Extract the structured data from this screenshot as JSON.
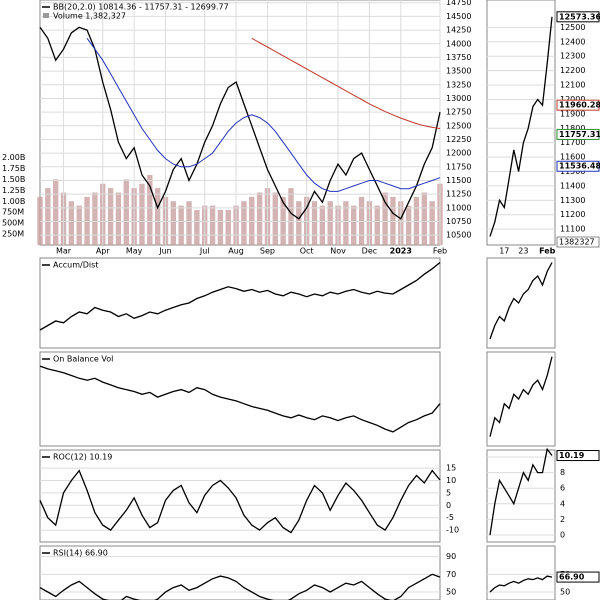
{
  "chart_data": [
    {
      "type": "line",
      "title": "BB(20,2.0) 10814.36 - 11757.31 - 12699.77",
      "volume_title": "Volume 1,382,327",
      "grid": true,
      "x_labels": [
        {
          "value": 3,
          "label": "Mar"
        },
        {
          "value": 8,
          "label": "Apr"
        },
        {
          "value": 12,
          "label": "May"
        },
        {
          "value": 16,
          "label": "Jun"
        },
        {
          "value": 21,
          "label": "Jul"
        },
        {
          "value": 25,
          "label": "Aug"
        },
        {
          "value": 29,
          "label": "Sep"
        },
        {
          "value": 34,
          "label": "Oct"
        },
        {
          "value": 38,
          "label": "Nov"
        },
        {
          "value": 42,
          "label": "Dec"
        },
        {
          "value": 46,
          "label": "2023"
        },
        {
          "value": 51,
          "label": "Feb"
        }
      ],
      "ylim": [
        10320,
        14800
      ],
      "yticks": [
        10500,
        10750,
        11000,
        11250,
        11500,
        11750,
        12000,
        12250,
        12500,
        12750,
        13000,
        13250,
        13500,
        13750,
        14000,
        14250,
        14500,
        14750
      ],
      "series": [
        {
          "color": "#000000",
          "values": [
            14300,
            14100,
            13700,
            13900,
            14200,
            14300,
            14250,
            13900,
            13300,
            12800,
            12200,
            11900,
            12100,
            11600,
            11400,
            11000,
            11300,
            11700,
            11900,
            11500,
            11800,
            12200,
            12500,
            12900,
            13200,
            13300,
            12900,
            12500,
            12100,
            11700,
            11400,
            11100,
            10900,
            10800,
            11000,
            11300,
            11100,
            11500,
            11800,
            11600,
            11900,
            12000,
            11700,
            11400,
            11100,
            10900,
            10800,
            11100,
            11400,
            11800,
            12100,
            12750
          ]
        },
        {
          "color": "#2233bb",
          "values": [
            null,
            null,
            null,
            null,
            null,
            null,
            14100,
            13900,
            13700,
            13450,
            13200,
            12950,
            12700,
            12450,
            12250,
            12050,
            11900,
            11800,
            11750,
            11750,
            11800,
            11900,
            12000,
            12200,
            12400,
            12550,
            12650,
            12700,
            12650,
            12550,
            12400,
            12200,
            12000,
            11800,
            11600,
            11450,
            11350,
            11300,
            11300,
            11350,
            11400,
            11450,
            11500,
            11500,
            11450,
            11400,
            11350,
            11350,
            11400,
            11450,
            11500,
            11550
          ]
        },
        {
          "color": "#c0392b",
          "values": [
            null,
            null,
            null,
            null,
            null,
            null,
            null,
            null,
            null,
            null,
            null,
            null,
            null,
            null,
            null,
            null,
            null,
            null,
            null,
            null,
            null,
            null,
            null,
            null,
            null,
            null,
            null,
            14100,
            14020,
            13940,
            13860,
            13780,
            13700,
            13620,
            13540,
            13460,
            13380,
            13300,
            13220,
            13140,
            13060,
            12980,
            12900,
            12830,
            12760,
            12700,
            12640,
            12590,
            12540,
            12500,
            12470,
            12450
          ]
        }
      ],
      "volume": {
        "color": "#c8a0a0",
        "values": [
          1100000000.0,
          1300000000.0,
          1500000000.0,
          1200000000.0,
          1000000000.0,
          900000000.0,
          1100000000.0,
          1200000000.0,
          1400000000.0,
          1300000000.0,
          1200000000.0,
          1500000000.0,
          1300000000.0,
          1400000000.0,
          1600000000.0,
          1300000000.0,
          1100000000.0,
          1000000000.0,
          900000000.0,
          1000000000.0,
          800000000.0,
          900000000.0,
          900000000.0,
          800000000.0,
          800000000.0,
          900000000.0,
          1000000000.0,
          1100000000.0,
          1200000000.0,
          1300000000.0,
          1200000000.0,
          1100000000.0,
          1300000000.0,
          1000000000.0,
          1100000000.0,
          1000000000.0,
          900000000.0,
          1000000000.0,
          900000000.0,
          1000000000.0,
          900000000.0,
          1100000000.0,
          1000000000.0,
          900000000.0,
          1200000000.0,
          1100000000.0,
          1000000000.0,
          900000000.0,
          1100000000.0,
          1200000000.0,
          1000000000.0,
          1400000000.0
        ],
        "ylim": [
          0,
          5600000000
        ],
        "yticks": [
          {
            "value": 250000000,
            "label": "250M"
          },
          {
            "value": 500000000,
            "label": "500M"
          },
          {
            "value": 750000000,
            "label": "750M"
          },
          {
            "value": 1000000000,
            "label": "1.00B"
          },
          {
            "value": 1250000000,
            "label": "1.25B"
          },
          {
            "value": 1500000000,
            "label": "1.50B"
          },
          {
            "value": 1750000000,
            "label": "1.75B"
          },
          {
            "value": 2000000000,
            "label": "2.00B"
          }
        ]
      },
      "zoom": {
        "x_labels": [
          {
            "value": 3,
            "label": "17"
          },
          {
            "value": 7,
            "label": "23"
          },
          {
            "value": 12,
            "label": "Feb"
          }
        ],
        "ylim": [
          10990,
          12690
        ],
        "yticks": [
          11100,
          11200,
          11300,
          11400,
          11500,
          11600,
          11700,
          11800,
          11900,
          12000,
          12100,
          12200,
          12300,
          12400,
          12500
        ],
        "series": [
          {
            "color": "#000000",
            "values": [
              11050,
              11150,
              11300,
              11250,
              11450,
              11650,
              11500,
              11700,
              11800,
              11950,
              12000,
              11960.28,
              12250,
              12573.36
            ]
          }
        ],
        "tags": [
          {
            "value": 12573.36,
            "color": "#000000"
          },
          {
            "value": 11960.28,
            "color": "#c0392b"
          },
          {
            "value": 11757.31,
            "color": "#2e8b2e"
          },
          {
            "value": 11536.48,
            "color": "#2233bb"
          }
        ],
        "volume_tag": 1382327
      }
    },
    {
      "type": "line",
      "title": "Accum/Dist",
      "grid": true,
      "ylim": [
        0,
        100
      ],
      "yticks": [],
      "series": [
        {
          "color": "#000000",
          "values": [
            20,
            25,
            30,
            28,
            35,
            40,
            38,
            45,
            42,
            40,
            35,
            38,
            33,
            36,
            40,
            38,
            42,
            45,
            48,
            50,
            55,
            58,
            62,
            65,
            68,
            66,
            63,
            65,
            62,
            64,
            60,
            58,
            62,
            60,
            57,
            60,
            58,
            62,
            60,
            63,
            65,
            62,
            60,
            63,
            61,
            60,
            65,
            70,
            75,
            82,
            88,
            95
          ]
        }
      ],
      "zoom": {
        "ylim": [
          0,
          100
        ],
        "yticks": [],
        "series": [
          {
            "color": "#000000",
            "values": [
              10,
              25,
              35,
              30,
              45,
              55,
              50,
              60,
              65,
              75,
              80,
              70,
              85,
              95
            ]
          }
        ]
      }
    },
    {
      "type": "line",
      "title": "On Balance Vol",
      "grid": true,
      "ylim": [
        0,
        100
      ],
      "yticks": [],
      "series": [
        {
          "color": "#000000",
          "values": [
            85,
            82,
            80,
            78,
            75,
            72,
            70,
            72,
            68,
            65,
            62,
            60,
            58,
            55,
            57,
            52,
            55,
            58,
            60,
            57,
            62,
            60,
            55,
            52,
            50,
            48,
            45,
            42,
            40,
            38,
            35,
            32,
            30,
            33,
            30,
            28,
            32,
            30,
            27,
            30,
            32,
            28,
            25,
            22,
            18,
            15,
            20,
            25,
            28,
            32,
            35,
            45
          ]
        }
      ],
      "zoom": {
        "ylim": [
          0,
          100
        ],
        "yticks": [],
        "series": [
          {
            "color": "#000000",
            "values": [
              10,
              30,
              25,
              45,
              40,
              55,
              50,
              60,
              55,
              65,
              70,
              60,
              75,
              95
            ]
          }
        ]
      }
    },
    {
      "type": "line",
      "title": "ROC(12) 10.19",
      "grid": true,
      "ylim": [
        -14.8,
        22.3
      ],
      "yticks": [
        -10,
        -5,
        0,
        5,
        10,
        15
      ],
      "series": [
        {
          "color": "#000000",
          "values": [
            2,
            -5,
            -8,
            5,
            10,
            14,
            6,
            -3,
            -8,
            -10,
            -6,
            -2,
            3,
            -4,
            -9,
            -7,
            2,
            6,
            8,
            1,
            -3,
            4,
            8,
            10,
            7,
            3,
            -4,
            -8,
            -10,
            -7,
            -5,
            -9,
            -11,
            -6,
            2,
            8,
            5,
            -2,
            4,
            9,
            6,
            2,
            -3,
            -8,
            -10,
            -5,
            2,
            8,
            12,
            9,
            14,
            10.19
          ]
        }
      ],
      "zoom": {
        "ylim": [
          -0.9,
          10.9
        ],
        "yticks": [
          0,
          2,
          4,
          6,
          8,
          10
        ],
        "series": [
          {
            "color": "#000000",
            "values": [
              0,
              4,
              7,
              6,
              5,
              4,
              6,
              8,
              7,
              9,
              8,
              8,
              11,
              10.19
            ]
          }
        ],
        "tags": [
          {
            "value": 10.19,
            "color": "#000000"
          }
        ]
      }
    },
    {
      "type": "line",
      "title": "RSI(14) 66.90",
      "grid": true,
      "ylim": [
        41,
        102
      ],
      "yticks": [
        50,
        70,
        90
      ],
      "series": [
        {
          "color": "#000000",
          "values": [
            55,
            50,
            45,
            52,
            58,
            62,
            55,
            48,
            42,
            40,
            38,
            45,
            42,
            40,
            38,
            42,
            50,
            55,
            58,
            52,
            55,
            60,
            65,
            68,
            66,
            62,
            55,
            50,
            45,
            42,
            40,
            38,
            42,
            48,
            52,
            58,
            55,
            50,
            55,
            60,
            58,
            62,
            55,
            48,
            42,
            40,
            45,
            55,
            60,
            65,
            70,
            66.9
          ]
        }
      ],
      "zoom": {
        "ylim": [
          41,
          102
        ],
        "yticks": [
          50,
          70
        ],
        "series": [
          {
            "color": "#000000",
            "values": [
              50,
              55,
              58,
              57,
              60,
              62,
              60,
              63,
              65,
              64,
              66,
              64,
              68,
              66.9
            ]
          }
        ],
        "tags": [
          {
            "value": {
              "value": 66.9,
              "label": "66.90"
            },
            "color": "#000000"
          }
        ]
      }
    }
  ]
}
